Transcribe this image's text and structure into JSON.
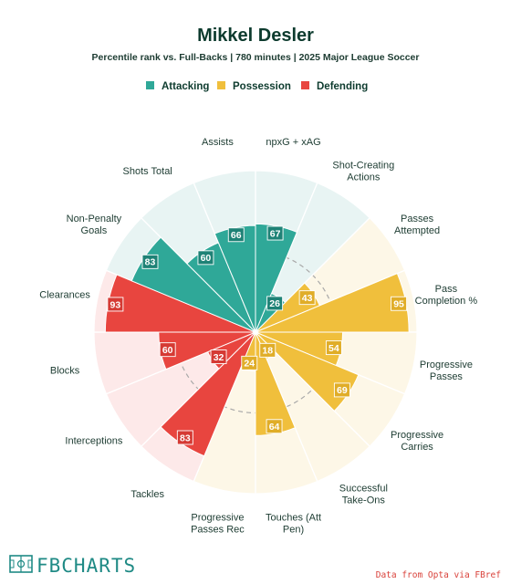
{
  "header": {
    "title": "Mikkel Desler",
    "subtitle": "Percentile rank vs. Full-Backs | 780 minutes | 2025 Major League Soccer"
  },
  "legend": [
    {
      "name": "Attacking",
      "color": "#2fa898"
    },
    {
      "name": "Possession",
      "color": "#f0bf3c"
    },
    {
      "name": "Defending",
      "color": "#e8453f"
    }
  ],
  "colors": {
    "Attacking": {
      "fill": "#2fa898",
      "bg": "#e8f4f3",
      "badge": "#1e8276"
    },
    "Possession": {
      "fill": "#f0bf3c",
      "bg": "#fdf7e7",
      "badge": "#e0ad28"
    },
    "Defending": {
      "fill": "#e8453f",
      "bg": "#fde9e9",
      "badge": "#d53a34"
    }
  },
  "chart_data": {
    "type": "polar-bar",
    "rmax": 100,
    "gridlines": [
      50
    ],
    "categories": [
      {
        "label": "npxG + xAG",
        "group": "Attacking",
        "value": 67
      },
      {
        "label": "Shot-Creating\nActions",
        "group": "Attacking",
        "value": 26
      },
      {
        "label": "Passes\nAttempted",
        "group": "Possession",
        "value": 43
      },
      {
        "label": "Pass\nCompletion %",
        "group": "Possession",
        "value": 95
      },
      {
        "label": "Progressive\nPasses",
        "group": "Possession",
        "value": 54
      },
      {
        "label": "Progressive\nCarries",
        "group": "Possession",
        "value": 69
      },
      {
        "label": "Successful\nTake-Ons",
        "group": "Possession",
        "value": 18
      },
      {
        "label": "Touches (Att\nPen)",
        "group": "Possession",
        "value": 64
      },
      {
        "label": "Progressive\nPasses Rec",
        "group": "Possession",
        "value": 24
      },
      {
        "label": "Tackles",
        "group": "Defending",
        "value": 83
      },
      {
        "label": "Interceptions",
        "group": "Defending",
        "value": 32
      },
      {
        "label": "Blocks",
        "group": "Defending",
        "value": 60
      },
      {
        "label": "Clearances",
        "group": "Defending",
        "value": 93
      },
      {
        "label": "Non-Penalty\nGoals",
        "group": "Attacking",
        "value": 83
      },
      {
        "label": "Shots Total",
        "group": "Attacking",
        "value": 60
      },
      {
        "label": "Assists",
        "group": "Attacking",
        "value": 66
      }
    ]
  },
  "footer": {
    "brand": "FBCHARTS",
    "source": "Data from Opta via FBref"
  }
}
